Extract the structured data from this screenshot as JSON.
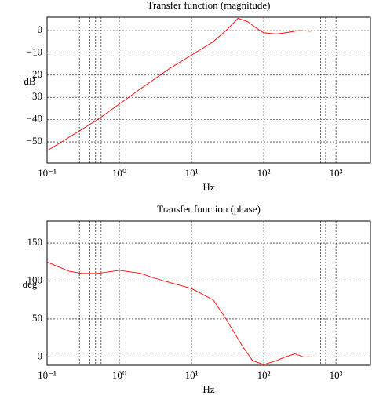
{
  "chart_data": [
    {
      "type": "line",
      "title": "Transfer function (magnitude)",
      "xlabel": "Hz",
      "ylabel": "dB",
      "xscale": "log",
      "grid": true,
      "x": [
        0.1,
        0.2,
        0.5,
        1,
        2,
        3,
        5,
        10,
        20,
        30,
        44,
        60,
        80,
        100,
        150,
        200,
        300,
        450
      ],
      "series": [
        {
          "name": "magnitude",
          "color": "#ff0000",
          "values": [
            -54,
            -48,
            -40,
            -33,
            -26,
            -22,
            -17,
            -11,
            -5,
            0,
            5.5,
            4,
            1,
            -1,
            -1.5,
            -1,
            0,
            -0.3
          ]
        }
      ],
      "xlim": [
        0.1,
        3000
      ],
      "ylim": [
        -59.5,
        6
      ],
      "xticks": [
        {
          "value": 0.1,
          "label": "10⁻¹"
        },
        {
          "value": 1,
          "label": "10⁰"
        },
        {
          "value": 10,
          "label": "10¹"
        },
        {
          "value": 100,
          "label": "10²"
        },
        {
          "value": 1000,
          "label": "10³"
        }
      ],
      "xgrid": [
        0.28,
        0.39,
        0.47,
        0.56,
        610,
        720,
        830
      ],
      "yticks": [
        0,
        {
          "value": -10,
          "label": "−10"
        },
        {
          "value": -20,
          "label": "−20"
        },
        {
          "value": -30,
          "label": "−30"
        },
        {
          "value": -40,
          "label": "−40"
        },
        {
          "value": -50,
          "label": "−50"
        }
      ]
    },
    {
      "type": "line",
      "title": "Transfer function (phase)",
      "xlabel": "Hz",
      "ylabel": "deg",
      "xscale": "log",
      "grid": true,
      "x": [
        0.1,
        0.2,
        0.3,
        0.5,
        1,
        2,
        3,
        5,
        10,
        20,
        30,
        50,
        70,
        100,
        150,
        200,
        270,
        350,
        450
      ],
      "series": [
        {
          "name": "phase",
          "color": "#ff0000",
          "values": [
            125,
            113,
            110,
            110,
            114,
            110,
            104,
            98,
            90,
            75,
            50,
            15,
            -5,
            -10,
            -5,
            0,
            4,
            0,
            0
          ]
        }
      ],
      "xlim": [
        0.1,
        3000
      ],
      "ylim": [
        -11,
        179
      ],
      "xticks": [
        {
          "value": 0.1,
          "label": "10⁻¹"
        },
        {
          "value": 1,
          "label": "10⁰"
        },
        {
          "value": 10,
          "label": "10¹"
        },
        {
          "value": 100,
          "label": "10²"
        },
        {
          "value": 1000,
          "label": "10³"
        }
      ],
      "xgrid": [
        0.28,
        0.39,
        0.47,
        0.56,
        610,
        720,
        830
      ],
      "yticks": [
        0,
        50,
        100,
        150
      ]
    }
  ]
}
